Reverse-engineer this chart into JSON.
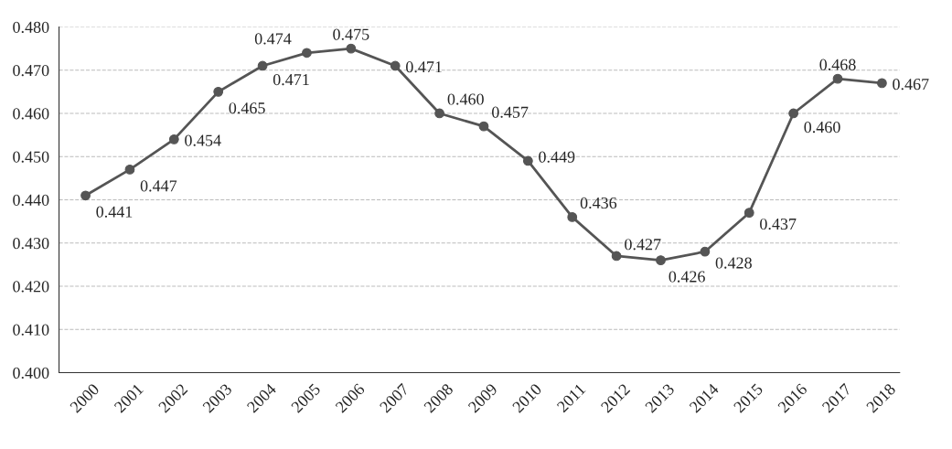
{
  "chart_data": {
    "type": "line",
    "categories": [
      "2000",
      "2001",
      "2002",
      "2003",
      "2004",
      "2005",
      "2006",
      "2007",
      "2008",
      "2009",
      "2010",
      "2011",
      "2012",
      "2013",
      "2014",
      "2015",
      "2016",
      "2017",
      "2018"
    ],
    "series": [
      {
        "color": "#555555",
        "values": [
          0.441,
          0.447,
          0.454,
          0.465,
          0.471,
          0.474,
          0.475,
          0.471,
          0.46,
          0.457,
          0.449,
          0.436,
          0.427,
          0.426,
          0.428,
          0.437,
          0.46,
          0.468,
          0.467
        ],
        "value_labels": [
          "0.441",
          "0.447",
          "0.454",
          "0.465",
          "0.471",
          "0.474",
          "0.475",
          "0.471",
          "0.460",
          "0.457",
          "0.449",
          "0.436",
          "0.427",
          "0.426",
          "0.428",
          "0.437",
          "0.460",
          "0.468",
          "0.467"
        ]
      }
    ],
    "ylim": [
      0.4,
      0.48
    ],
    "yticks": [
      {
        "value": 0.4,
        "label": "0.400"
      },
      {
        "value": 0.41,
        "label": "0.410"
      },
      {
        "value": 0.42,
        "label": "0.420"
      },
      {
        "value": 0.43,
        "label": "0.430"
      },
      {
        "value": 0.44,
        "label": "0.440"
      },
      {
        "value": 0.45,
        "label": "0.450"
      },
      {
        "value": 0.46,
        "label": "0.460"
      },
      {
        "value": 0.47,
        "label": "0.470"
      },
      {
        "value": 0.48,
        "label": "0.480"
      }
    ],
    "grid": "y",
    "marker": "circle",
    "line_style": "solid",
    "legend": false
  }
}
